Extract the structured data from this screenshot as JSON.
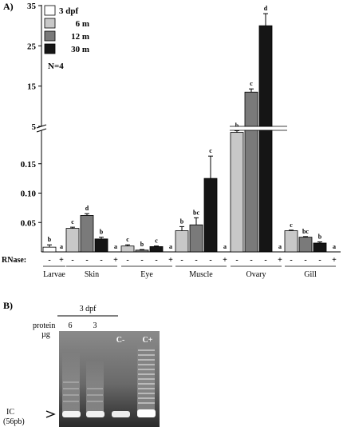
{
  "panel_a_label": "A)",
  "panel_b_label": "B)",
  "chart_data": {
    "type": "bar",
    "ylim_lower": [
      0,
      0.2
    ],
    "ylim_upper": [
      5,
      35
    ],
    "yticks_lower": [
      "0.05",
      "0.10",
      "0.15"
    ],
    "yticks_upper": [
      "5",
      "15",
      "25",
      "35"
    ],
    "sample_size": "N=4",
    "rnase_label": "RNase:",
    "legend": [
      {
        "name": "3 dpf",
        "color": "#ffffff"
      },
      {
        "name": "6 m",
        "color": "#c8c8c8"
      },
      {
        "name": "12 m",
        "color": "#7a7a7a"
      },
      {
        "name": "30 m",
        "color": "#151515"
      }
    ],
    "groups": [
      {
        "label": "Larvae",
        "bars": [
          {
            "series": "3 dpf",
            "value": 0.008,
            "error": 0.004,
            "letter": "b",
            "rnase": "-"
          },
          {
            "series": "3 dpf",
            "value": 0.0,
            "error": 0,
            "letter": "a",
            "rnase": "+"
          }
        ]
      },
      {
        "label": "Skin",
        "bars": [
          {
            "series": "6 m",
            "value": 0.04,
            "error": 0.002,
            "letter": "c",
            "rnase": "-"
          },
          {
            "series": "12 m",
            "value": 0.062,
            "error": 0.003,
            "letter": "d",
            "rnase": "-"
          },
          {
            "series": "30 m",
            "value": 0.022,
            "error": 0.003,
            "letter": "b",
            "rnase": "-"
          },
          {
            "series": "30 m",
            "value": 0.0,
            "error": 0,
            "letter": "a",
            "rnase": "+"
          }
        ]
      },
      {
        "label": "Eye",
        "bars": [
          {
            "series": "6 m",
            "value": 0.01,
            "error": 0.002,
            "letter": "c",
            "rnase": "-"
          },
          {
            "series": "12 m",
            "value": 0.003,
            "error": 0.001,
            "letter": "b",
            "rnase": "-"
          },
          {
            "series": "30 m",
            "value": 0.009,
            "error": 0.001,
            "letter": "c",
            "rnase": "-"
          },
          {
            "series": "30 m",
            "value": 0.0,
            "error": 0,
            "letter": "a",
            "rnase": "+"
          }
        ]
      },
      {
        "label": "Muscle",
        "bars": [
          {
            "series": "6 m",
            "value": 0.036,
            "error": 0.007,
            "letter": "b",
            "rnase": "-"
          },
          {
            "series": "12 m",
            "value": 0.046,
            "error": 0.012,
            "letter": "bc",
            "rnase": "-"
          },
          {
            "series": "30 m",
            "value": 0.125,
            "error": 0.038,
            "letter": "c",
            "rnase": "-"
          },
          {
            "series": "30 m",
            "value": 0.0,
            "error": 0,
            "letter": "a",
            "rnase": "+"
          }
        ]
      },
      {
        "label": "Ovary",
        "bars": [
          {
            "series": "6 m",
            "value": 3.5,
            "error": 0.4,
            "letter": "b",
            "rnase": "-"
          },
          {
            "series": "12 m",
            "value": 13.5,
            "error": 0.8,
            "letter": "c",
            "rnase": "-"
          },
          {
            "series": "30 m",
            "value": 30.0,
            "error": 3.0,
            "letter": "d",
            "rnase": "-"
          },
          {
            "series": "30 m",
            "value": 0.0,
            "error": 0,
            "letter": "a",
            "rnase": "+"
          }
        ]
      },
      {
        "label": "Gill",
        "bars": [
          {
            "series": "6 m",
            "value": 0.036,
            "error": 0.001,
            "letter": "c",
            "rnase": "-"
          },
          {
            "series": "12 m",
            "value": 0.025,
            "error": 0.001,
            "letter": "bc",
            "rnase": "-"
          },
          {
            "series": "30 m",
            "value": 0.015,
            "error": 0.002,
            "letter": "b",
            "rnase": "-"
          },
          {
            "series": "30 m",
            "value": 0.0,
            "error": 0,
            "letter": "a",
            "rnase": "+"
          }
        ]
      }
    ]
  },
  "gel": {
    "header": "3 dpf",
    "protein_label": "protein",
    "unit_label": "µg",
    "lane_labels": [
      "6",
      "3"
    ],
    "control_negative": "C-",
    "control_positive": "C+",
    "band_label": "IC",
    "band_size": "(56pb)"
  }
}
